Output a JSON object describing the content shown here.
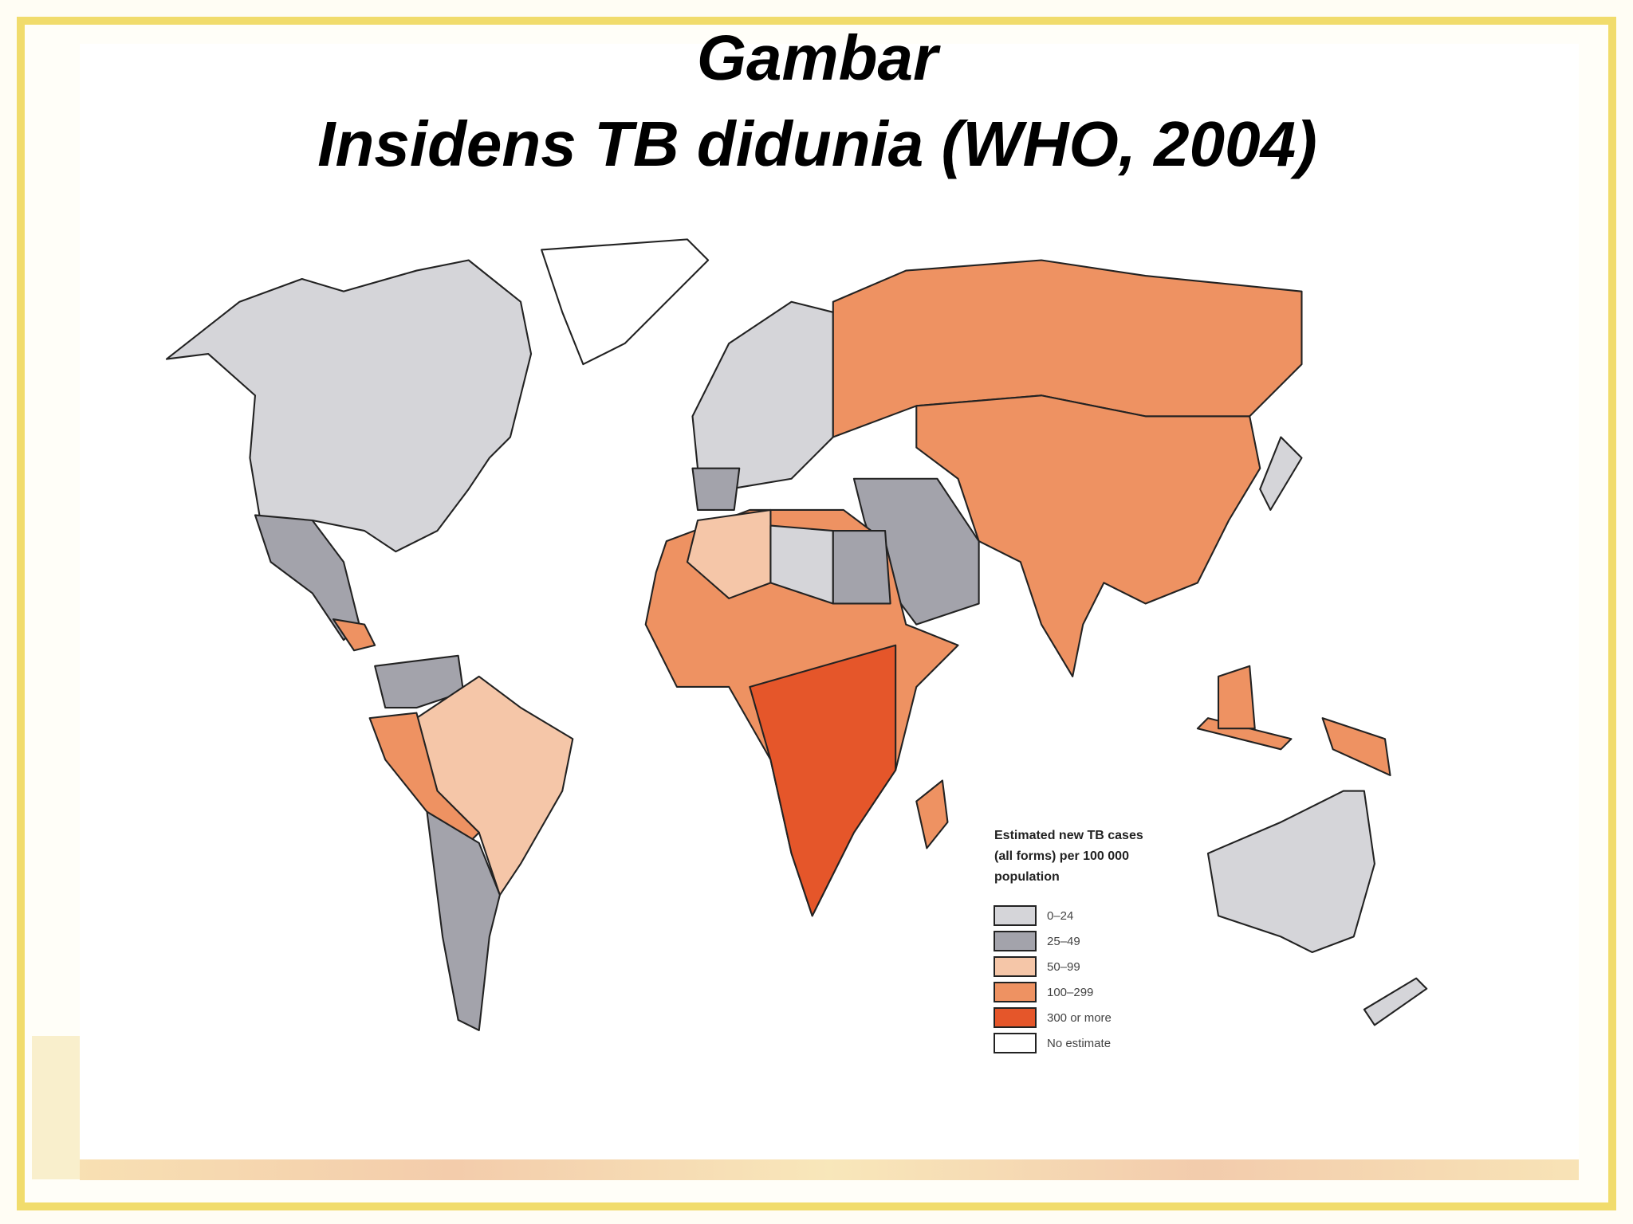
{
  "title": {
    "line1": "Gambar",
    "line2": "Insidens TB didunia (WHO, 2004)"
  },
  "legend": {
    "title": [
      "Estimated new TB cases",
      "(all forms) per 100 000",
      "population"
    ],
    "items": [
      {
        "label": "0–24",
        "color": "#d5d5d9"
      },
      {
        "label": "25–49",
        "color": "#a3a3ab"
      },
      {
        "label": "50–99",
        "color": "#f5c6a8"
      },
      {
        "label": "100–299",
        "color": "#ee9262"
      },
      {
        "label": "300 or more",
        "color": "#e5562a"
      },
      {
        "label": "No estimate",
        "color": "#ffffff"
      }
    ]
  }
}
